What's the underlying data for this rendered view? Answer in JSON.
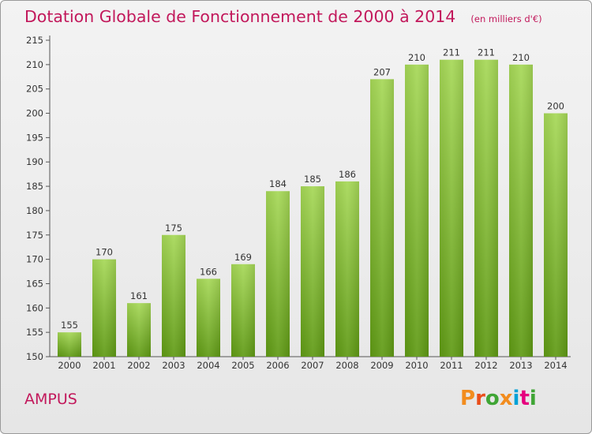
{
  "header": {
    "title": "Dotation Globale de Fonctionnement de 2000 à 2014",
    "subtitle": "(en milliers d'€)"
  },
  "footer": {
    "commune": "AMPUS",
    "logo_text": "Proxiti"
  },
  "colors": {
    "title": "#c2185b",
    "bar_top": "#a6d857",
    "bar_bottom": "#5f9a14",
    "logo": [
      "#f28c1e",
      "#e94e1b",
      "#3fa535",
      "#f28c1e",
      "#00a1d6",
      "#e6007e",
      "#3fa535"
    ]
  },
  "chart_data": {
    "type": "bar",
    "categories": [
      "2000",
      "2001",
      "2002",
      "2003",
      "2004",
      "2005",
      "2006",
      "2007",
      "2008",
      "2009",
      "2010",
      "2011",
      "2012",
      "2013",
      "2014"
    ],
    "values": [
      155,
      170,
      161,
      175,
      166,
      169,
      184,
      185,
      186,
      207,
      210,
      211,
      211,
      210,
      200
    ],
    "xlabel": "",
    "ylabel": "",
    "ylim": [
      150,
      215
    ],
    "yticks": [
      150,
      155,
      160,
      165,
      170,
      175,
      180,
      185,
      190,
      195,
      200,
      205,
      210,
      215
    ],
    "grid": false,
    "legend": "none"
  }
}
